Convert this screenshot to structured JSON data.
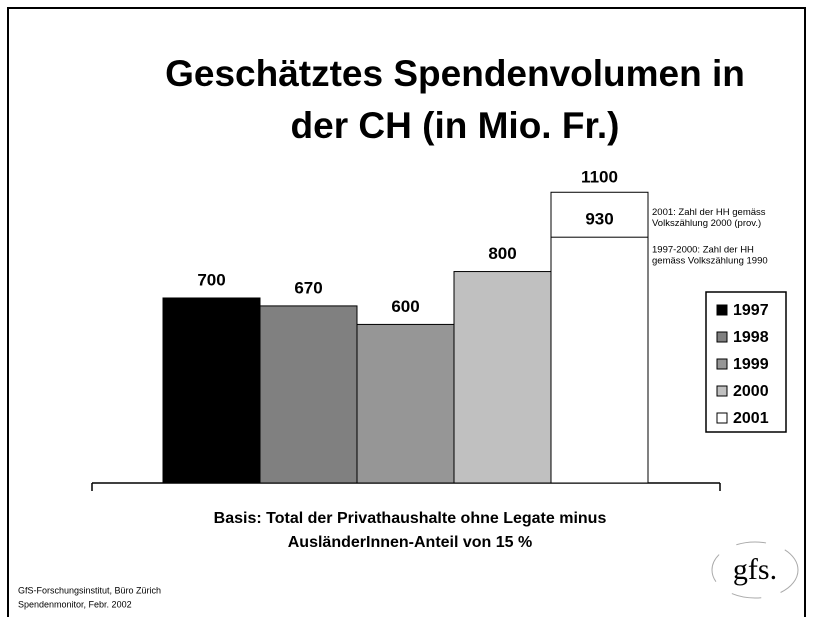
{
  "chart_data": {
    "type": "bar",
    "title": [
      "Geschätztes Spendenvolumen in",
      "der CH (in Mio. Fr.)"
    ],
    "series": [
      {
        "name": "1997",
        "color": "#000000",
        "values": [
          700
        ]
      },
      {
        "name": "1998",
        "color": "#808080",
        "values": [
          670
        ]
      },
      {
        "name": "1999",
        "color": "#969696",
        "values": [
          600
        ]
      },
      {
        "name": "2000",
        "color": "#c0c0c0",
        "values": [
          800
        ]
      },
      {
        "name": "2001",
        "color": "#ffffff",
        "values": [
          930
        ]
      }
    ],
    "extra_bar": {
      "series": 4,
      "value": 1100,
      "note": [
        "2001: Zahl der HH gemäss",
        "Volkszählung 2000  (prov.)"
      ]
    },
    "annotation": [
      "1997-2000: Zahl der HH",
      "gemäss Volkszählung 1990"
    ],
    "ylim": [
      0,
      1300
    ],
    "subtitle": [
      "Basis: Total der Privathaushalte ohne Legate minus",
      "AusländerInnen-Anteil von 15 %"
    ],
    "source": [
      "GfS-Forschungsinstitut, Büro Zürich",
      "Spendenmonitor, Febr. 2002"
    ],
    "logo": "gfs."
  }
}
